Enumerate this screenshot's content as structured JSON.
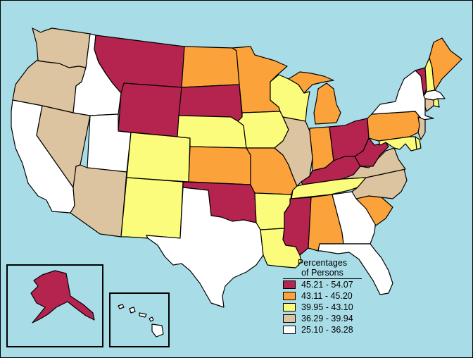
{
  "legend": {
    "title_line1": "Percentages",
    "title_line2": "of Persons",
    "classes": [
      {
        "label": "45.21 - 54.07",
        "color": "#b5234f"
      },
      {
        "label": "43.11 - 45.20",
        "color": "#fba33a"
      },
      {
        "label": "39.95 - 43.10",
        "color": "#fcfc7c"
      },
      {
        "label": "36.29 - 39.94",
        "color": "#dcc4a0"
      },
      {
        "label": "25.10 - 36.28",
        "color": "#ffffff"
      }
    ]
  },
  "states": {
    "WA": 3,
    "OR": 3,
    "CA": 4,
    "NV": 3,
    "ID": 4,
    "MT": 0,
    "WY": 0,
    "UT": 4,
    "AZ": 3,
    "CO": 2,
    "NM": 2,
    "ND": 1,
    "SD": 0,
    "NE": 2,
    "KS": 1,
    "OK": 0,
    "TX": 4,
    "MN": 1,
    "IA": 2,
    "MO": 1,
    "AR": 2,
    "LA": 2,
    "WI": 2,
    "IL": 3,
    "MI": 1,
    "IN": 1,
    "OH": 0,
    "KY": 0,
    "TN": 2,
    "MS": 0,
    "AL": 1,
    "GA": 4,
    "FL": 4,
    "SC": 1,
    "NC": 3,
    "VA": 3,
    "WV": 0,
    "PA": 1,
    "NY": 4,
    "ME": 1,
    "VT": 0,
    "NH": 2,
    "MA": 4,
    "CT": 3,
    "RI": 2,
    "NJ": 3,
    "DE": 2,
    "MD": 2,
    "AK": 0,
    "HI": 4
  }
}
